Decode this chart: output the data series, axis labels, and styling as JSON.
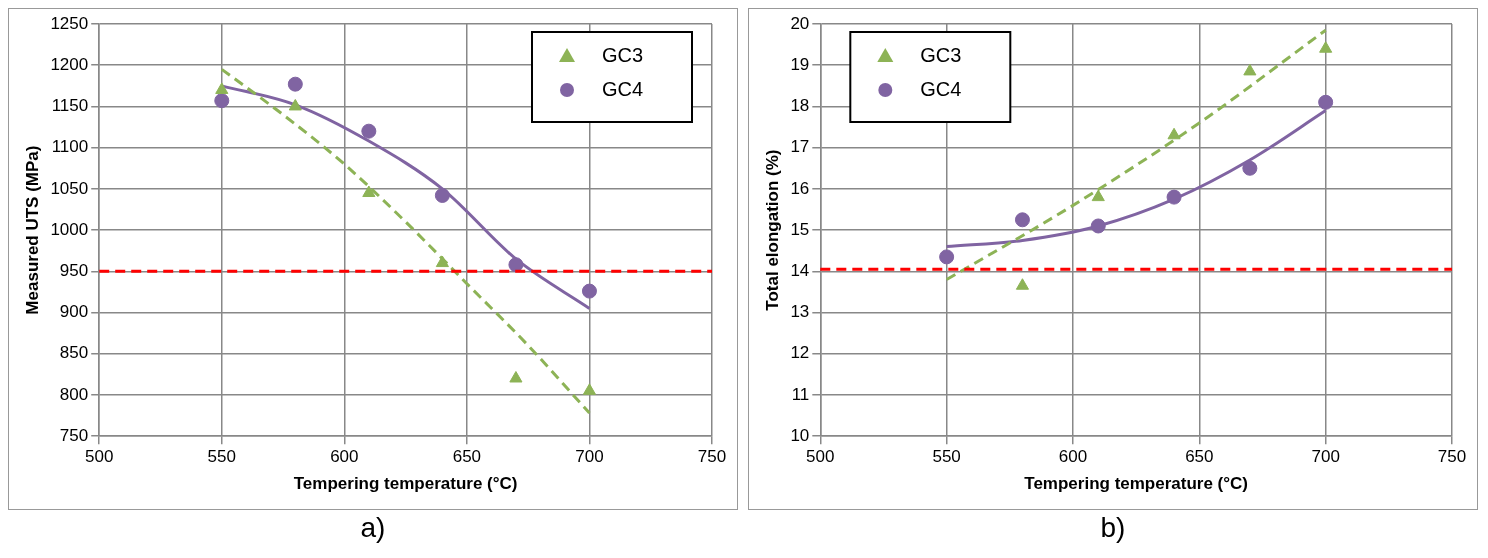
{
  "chart_data": [
    {
      "type": "scatter",
      "xlabel": "Tempering temperature (°C)",
      "ylabel": "Measured UTS (MPa)",
      "xlim": [
        500,
        750
      ],
      "xticks": [
        500,
        550,
        600,
        650,
        700,
        750
      ],
      "ylim": [
        750,
        1250
      ],
      "yticks": [
        750,
        800,
        850,
        900,
        950,
        1000,
        1050,
        1100,
        1150,
        1200,
        1250
      ],
      "grid": true,
      "legend": "top right",
      "annotations": [
        "a)"
      ],
      "series": [
        {
          "name": "GC3",
          "color": "#8db356",
          "marker": "triangle",
          "x": [
            550,
            580,
            610,
            640,
            670,
            700
          ],
          "values": [
            1170,
            1150,
            1045,
            960,
            820,
            805
          ]
        },
        {
          "name": "GC4",
          "color": "#8064a2",
          "marker": "circle",
          "x": [
            550,
            580,
            610,
            640,
            670,
            700
          ],
          "values": [
            1157,
            1177,
            1120,
            1042,
            958,
            926
          ]
        },
        {
          "type": "line",
          "color": "#8db356",
          "line_style": "dashed",
          "x": [
            550,
            575,
            600,
            625,
            650,
            675,
            700
          ],
          "values": [
            1195,
            1140,
            1080,
            1010,
            935,
            860,
            778
          ]
        },
        {
          "type": "line",
          "color": "#8064a2",
          "line_style": "solid",
          "x": [
            550,
            580,
            610,
            640,
            670,
            700
          ],
          "values": [
            1175,
            1152,
            1108,
            1050,
            965,
            905
          ]
        }
      ],
      "ref_lines": [
        {
          "axis": "y",
          "value": 950,
          "color": "#ff0000",
          "line_style": "dashed"
        }
      ]
    },
    {
      "type": "scatter",
      "xlabel": "Tempering temperature (°C)",
      "ylabel": "Total elongation (%)",
      "xlim": [
        500,
        750
      ],
      "xticks": [
        500,
        550,
        600,
        650,
        700,
        750
      ],
      "ylim": [
        10,
        20
      ],
      "yticks": [
        10,
        11,
        12,
        13,
        14,
        15,
        16,
        17,
        18,
        19,
        20
      ],
      "grid": true,
      "legend": "top left",
      "annotations": [
        "b)"
      ],
      "series": [
        {
          "name": "GC3",
          "color": "#8db356",
          "marker": "triangle",
          "x": [
            580,
            610,
            640,
            670,
            700
          ],
          "values": [
            13.65,
            15.8,
            17.3,
            18.85,
            19.4
          ]
        },
        {
          "name": "GC4",
          "color": "#8064a2",
          "marker": "circle",
          "x": [
            550,
            580,
            610,
            640,
            670,
            700
          ],
          "values": [
            14.35,
            15.25,
            15.1,
            15.8,
            16.5,
            18.1
          ]
        },
        {
          "type": "line",
          "color": "#8db356",
          "line_style": "dashed",
          "x": [
            550,
            600,
            650,
            700
          ],
          "values": [
            13.8,
            15.6,
            17.6,
            19.85
          ]
        },
        {
          "type": "line",
          "color": "#8064a2",
          "line_style": "solid",
          "x": [
            550,
            580,
            610,
            640,
            670,
            700
          ],
          "values": [
            14.6,
            14.75,
            15.1,
            15.75,
            16.7,
            17.9
          ]
        }
      ],
      "ref_lines": [
        {
          "axis": "y",
          "value": 14.05,
          "color": "#ff0000",
          "line_style": "dashed"
        }
      ]
    }
  ]
}
